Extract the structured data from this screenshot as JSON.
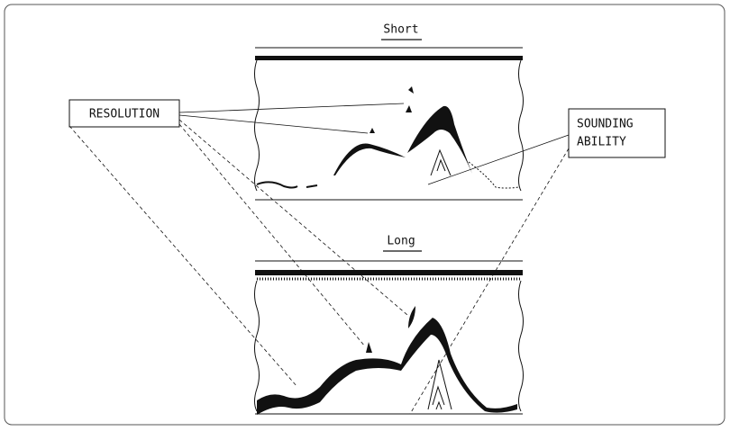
{
  "labels": {
    "short": "Short",
    "long": "Long",
    "resolution": "RESOLUTION",
    "sounding_ability": [
      "SOUNDING",
      "ABILITY"
    ]
  }
}
